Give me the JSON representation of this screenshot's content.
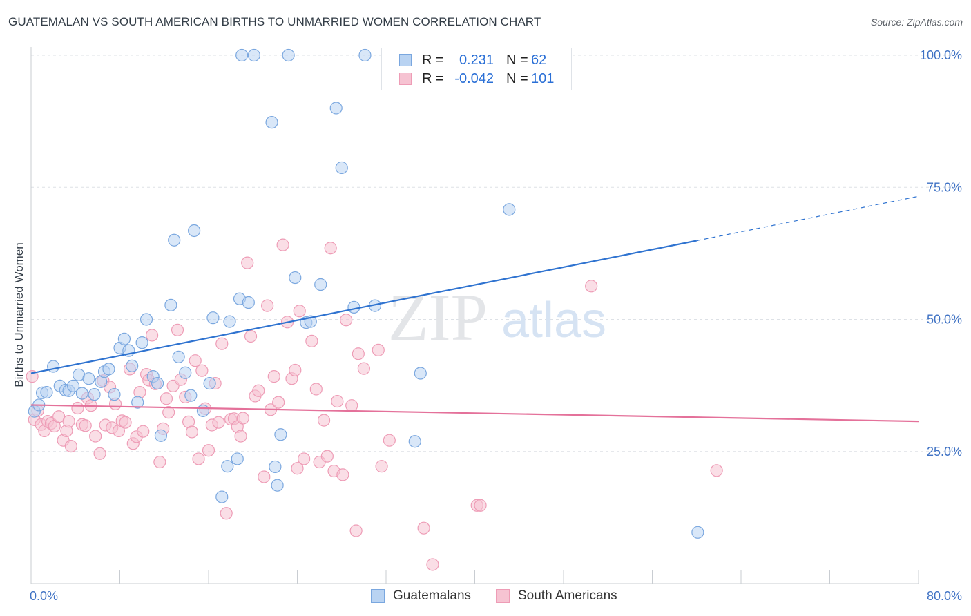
{
  "title": "GUATEMALAN VS SOUTH AMERICAN BIRTHS TO UNMARRIED WOMEN CORRELATION CHART",
  "source": "Source: ZipAtlas.com",
  "watermark": {
    "zip": "ZIP",
    "atlas": "atlas"
  },
  "colors": {
    "blue_fill": "#b9d3f2",
    "blue_stroke": "#7aa7df",
    "blue_line": "#2f73d0",
    "pink_fill": "#f6c3d2",
    "pink_stroke": "#ee9cb6",
    "pink_line": "#e4719a",
    "tick_label": "#3f72c4",
    "grid": "#dde1e6"
  },
  "legend": {
    "rows": [
      {
        "r_label": "R =",
        "r_value": "0.231",
        "n_label": "N =",
        "n_value": "62"
      },
      {
        "r_label": "R =",
        "r_value": "-0.042",
        "n_label": "N =",
        "n_value": "101"
      }
    ]
  },
  "bottom_legend": {
    "guatemalans": "Guatemalans",
    "south_americans": "South Americans"
  },
  "chart_data": {
    "type": "scatter",
    "title": "GUATEMALAN VS SOUTH AMERICAN BIRTHS TO UNMARRIED WOMEN CORRELATION CHART",
    "xlabel": "",
    "ylabel": "Births to Unmarried Women",
    "xlim": [
      0,
      80
    ],
    "ylim": [
      0,
      105
    ],
    "x_tick_labels": [
      "0.0%",
      "80.0%"
    ],
    "y_ticks": [
      25,
      50,
      75,
      100
    ],
    "y_tick_labels": [
      "25.0%",
      "50.0%",
      "75.0%",
      "100.0%"
    ],
    "grid": "horizontal dashed",
    "series": [
      {
        "name": "Guatemalans",
        "color": "#b9d3f2",
        "stats": {
          "R": 0.231,
          "N": 62
        },
        "trend": {
          "x": [
            0,
            60,
            80
          ],
          "y": [
            39.8,
            64.9,
            73.3
          ],
          "dashed_from_x": 60
        },
        "points": [
          [
            0.3,
            32.6
          ],
          [
            0.7,
            33.8
          ],
          [
            1.0,
            36.1
          ],
          [
            1.4,
            36.2
          ],
          [
            2.0,
            41.1
          ],
          [
            2.6,
            37.4
          ],
          [
            3.1,
            36.6
          ],
          [
            3.4,
            36.5
          ],
          [
            3.8,
            37.4
          ],
          [
            4.3,
            39.5
          ],
          [
            4.6,
            36.0
          ],
          [
            5.2,
            38.8
          ],
          [
            5.7,
            35.8
          ],
          [
            6.3,
            38.2
          ],
          [
            6.6,
            40.1
          ],
          [
            7.0,
            40.6
          ],
          [
            7.5,
            35.8
          ],
          [
            8.0,
            44.6
          ],
          [
            8.4,
            46.3
          ],
          [
            8.8,
            44.1
          ],
          [
            9.1,
            41.2
          ],
          [
            9.6,
            34.3
          ],
          [
            10.4,
            50.0
          ],
          [
            10.0,
            45.6
          ],
          [
            11.0,
            39.2
          ],
          [
            11.4,
            37.9
          ],
          [
            11.7,
            28.0
          ],
          [
            12.6,
            52.7
          ],
          [
            12.9,
            65.0
          ],
          [
            13.3,
            42.9
          ],
          [
            13.9,
            39.9
          ],
          [
            14.4,
            35.6
          ],
          [
            14.7,
            66.8
          ],
          [
            15.5,
            32.7
          ],
          [
            16.1,
            37.9
          ],
          [
            16.4,
            50.3
          ],
          [
            17.2,
            16.4
          ],
          [
            17.7,
            22.2
          ],
          [
            17.9,
            49.6
          ],
          [
            18.6,
            23.6
          ],
          [
            18.8,
            53.9
          ],
          [
            19.6,
            53.2
          ],
          [
            19.0,
            100.0
          ],
          [
            20.1,
            100.0
          ],
          [
            21.7,
            87.3
          ],
          [
            22.0,
            22.1
          ],
          [
            22.2,
            18.6
          ],
          [
            22.5,
            28.2
          ],
          [
            23.2,
            100.0
          ],
          [
            23.8,
            57.9
          ],
          [
            24.8,
            49.4
          ],
          [
            25.2,
            49.6
          ],
          [
            26.1,
            56.6
          ],
          [
            27.5,
            90.0
          ],
          [
            28.0,
            78.7
          ],
          [
            29.1,
            52.3
          ],
          [
            30.1,
            100.0
          ],
          [
            31.0,
            52.6
          ],
          [
            34.6,
            26.9
          ],
          [
            35.1,
            39.8
          ],
          [
            43.1,
            70.8
          ],
          [
            60.1,
            9.7
          ]
        ]
      },
      {
        "name": "South Americans",
        "color": "#f6c3d2",
        "stats": {
          "R": -0.042,
          "N": 101
        },
        "trend": {
          "x": [
            0,
            80
          ],
          "y": [
            33.8,
            30.7
          ]
        },
        "points": [
          [
            0.1,
            39.2
          ],
          [
            0.3,
            31.0
          ],
          [
            0.6,
            32.7
          ],
          [
            0.9,
            30.1
          ],
          [
            1.2,
            28.9
          ],
          [
            1.5,
            30.7
          ],
          [
            1.8,
            30.3
          ],
          [
            2.1,
            29.8
          ],
          [
            2.5,
            31.6
          ],
          [
            2.9,
            27.1
          ],
          [
            3.2,
            28.9
          ],
          [
            3.4,
            30.7
          ],
          [
            3.6,
            26.0
          ],
          [
            4.2,
            33.2
          ],
          [
            4.6,
            30.1
          ],
          [
            4.9,
            29.9
          ],
          [
            5.1,
            35.1
          ],
          [
            5.4,
            33.7
          ],
          [
            5.8,
            27.9
          ],
          [
            6.2,
            24.6
          ],
          [
            6.5,
            38.4
          ],
          [
            6.7,
            30.0
          ],
          [
            7.1,
            37.2
          ],
          [
            7.3,
            29.5
          ],
          [
            7.6,
            34.0
          ],
          [
            7.9,
            28.9
          ],
          [
            8.2,
            30.8
          ],
          [
            8.5,
            30.5
          ],
          [
            8.9,
            40.6
          ],
          [
            9.2,
            26.5
          ],
          [
            9.5,
            27.8
          ],
          [
            9.8,
            36.2
          ],
          [
            10.1,
            28.8
          ],
          [
            10.4,
            39.6
          ],
          [
            10.6,
            38.5
          ],
          [
            10.9,
            47.0
          ],
          [
            11.2,
            37.8
          ],
          [
            11.6,
            23.0
          ],
          [
            11.9,
            29.3
          ],
          [
            12.2,
            35.0
          ],
          [
            12.4,
            32.4
          ],
          [
            12.8,
            37.4
          ],
          [
            13.2,
            48.0
          ],
          [
            13.5,
            38.6
          ],
          [
            13.9,
            35.3
          ],
          [
            14.2,
            30.6
          ],
          [
            14.5,
            28.7
          ],
          [
            14.8,
            42.2
          ],
          [
            15.1,
            23.6
          ],
          [
            15.4,
            40.3
          ],
          [
            15.7,
            33.1
          ],
          [
            16.0,
            25.2
          ],
          [
            16.3,
            30.0
          ],
          [
            16.6,
            37.9
          ],
          [
            16.9,
            30.5
          ],
          [
            17.2,
            45.4
          ],
          [
            17.6,
            13.3
          ],
          [
            18.0,
            31.1
          ],
          [
            18.3,
            31.2
          ],
          [
            18.6,
            29.7
          ],
          [
            18.9,
            27.9
          ],
          [
            19.1,
            31.3
          ],
          [
            19.5,
            60.7
          ],
          [
            19.8,
            46.8
          ],
          [
            20.2,
            35.5
          ],
          [
            20.5,
            36.5
          ],
          [
            21.0,
            20.2
          ],
          [
            21.3,
            52.6
          ],
          [
            21.6,
            32.9
          ],
          [
            21.9,
            39.2
          ],
          [
            22.3,
            34.3
          ],
          [
            22.7,
            64.1
          ],
          [
            23.1,
            49.5
          ],
          [
            23.5,
            38.8
          ],
          [
            23.8,
            40.4
          ],
          [
            24.0,
            21.8
          ],
          [
            24.2,
            51.6
          ],
          [
            24.6,
            23.6
          ],
          [
            25.3,
            45.9
          ],
          [
            25.7,
            36.8
          ],
          [
            26.0,
            23.0
          ],
          [
            26.4,
            30.9
          ],
          [
            26.7,
            24.1
          ],
          [
            27.0,
            63.5
          ],
          [
            27.3,
            21.3
          ],
          [
            27.6,
            34.5
          ],
          [
            28.1,
            20.6
          ],
          [
            28.4,
            49.9
          ],
          [
            28.9,
            33.7
          ],
          [
            29.3,
            10.0
          ],
          [
            29.5,
            43.5
          ],
          [
            30.0,
            40.7
          ],
          [
            31.3,
            44.2
          ],
          [
            31.6,
            22.2
          ],
          [
            32.3,
            27.1
          ],
          [
            35.4,
            10.5
          ],
          [
            36.2,
            3.6
          ],
          [
            40.2,
            14.8
          ],
          [
            40.5,
            14.8
          ],
          [
            50.5,
            56.3
          ],
          [
            61.8,
            21.4
          ]
        ]
      }
    ]
  }
}
